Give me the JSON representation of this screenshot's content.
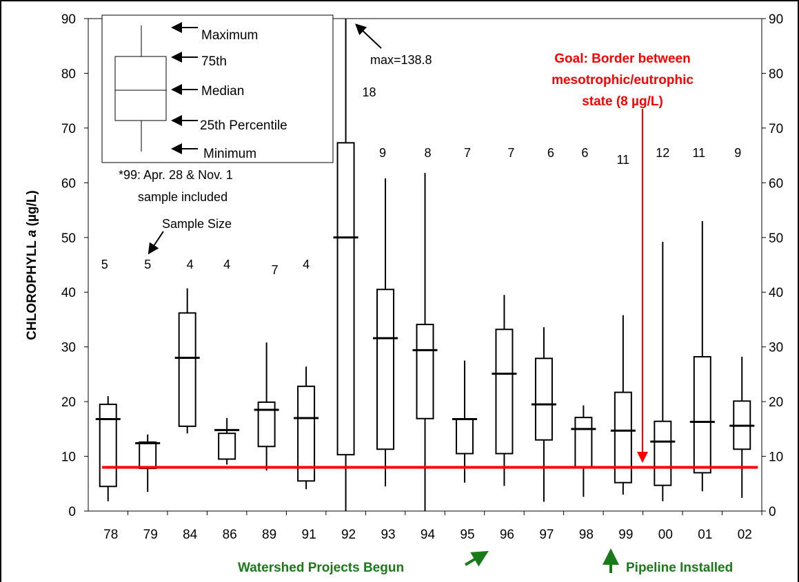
{
  "chart_data": {
    "type": "box",
    "categories": [
      "78",
      "79",
      "84",
      "86",
      "89",
      "91",
      "92",
      "93",
      "94",
      "95",
      "96",
      "97",
      "98",
      "99",
      "00",
      "01",
      "02"
    ],
    "min": [
      1.8,
      3.5,
      14.2,
      8.5,
      7.4,
      4,
      0,
      4.5,
      0,
      5.2,
      4.6,
      1.7,
      2.6,
      3,
      1.8,
      3.6,
      2.4
    ],
    "q1": [
      4.5,
      7.8,
      15.5,
      9.5,
      11.8,
      5.5,
      10.3,
      11.3,
      16.9,
      10.5,
      10.5,
      13,
      8,
      5.2,
      4.7,
      7,
      11.3
    ],
    "median": [
      16.8,
      12.4,
      28,
      14.8,
      18.5,
      17,
      50,
      31.6,
      29.4,
      16.8,
      25.1,
      19.5,
      15,
      14.7,
      12.7,
      16.3,
      15.6
    ],
    "q3": [
      19.5,
      12.6,
      36.2,
      14.2,
      19.9,
      22.8,
      67.3,
      40.5,
      34.1,
      16.8,
      33.2,
      27.9,
      17.1,
      21.7,
      16.4,
      28.2,
      20.1
    ],
    "max": [
      21,
      14,
      40.7,
      17,
      30.8,
      26.4,
      138.8,
      60.8,
      61.8,
      27.5,
      39.5,
      33.6,
      19.3,
      35.8,
      49.2,
      53,
      28.2
    ],
    "sample_sizes": [
      5,
      5,
      4,
      4,
      7,
      4,
      18,
      9,
      8,
      7,
      7,
      6,
      6,
      11,
      12,
      11,
      9
    ],
    "color": "#000000",
    "goal": 8,
    "goal_color": "#ff0000",
    "ylim": [
      0,
      90
    ],
    "yticks": [
      0,
      10,
      20,
      30,
      40,
      50,
      60,
      70,
      80,
      90
    ],
    "y2lim": [
      0,
      90
    ],
    "y2ticks": [
      0,
      10,
      20,
      30,
      40,
      50,
      60,
      70,
      80,
      90
    ],
    "ylabel": [
      "CHLOROPHYLL",
      "a",
      "(µg/L)"
    ],
    "legend": [
      "Maximum",
      "75th",
      "Median",
      "25th Percentile",
      "Minimum"
    ],
    "note": [
      "*99:  Apr. 28 & Nov. 1",
      "sample included"
    ],
    "sample_size_label": "Sample Size",
    "max_annotation": "max=138.8",
    "goal_annotation": [
      "Goal:  Border between",
      "mesotrophic/eutrophic",
      "state (8 µg/L)"
    ],
    "events": [
      "Watershed Projects Begun",
      "Pipeline Installed"
    ]
  }
}
